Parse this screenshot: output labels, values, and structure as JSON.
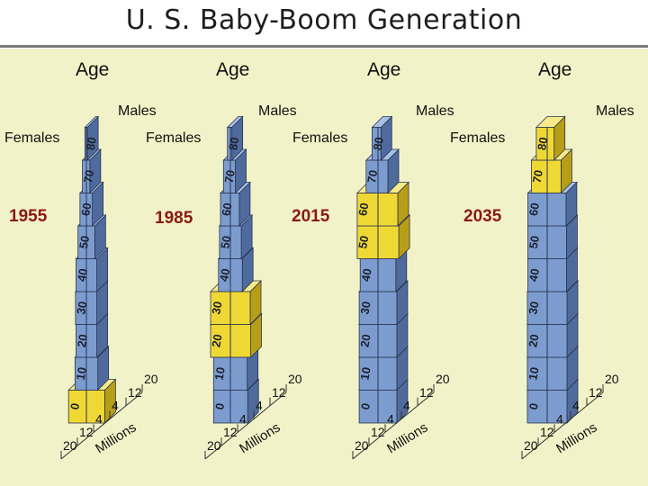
{
  "title": "U. S. Baby-Boom Generation",
  "colors": {
    "background": "#f2f2c8",
    "bar_blue": "#7c9ccf",
    "bar_blue_side": "#4f6b9d",
    "bar_blue_top": "#a9c0e6",
    "baby_boom": "#f0d834",
    "baby_boom_side": "#b89e16",
    "baby_boom_top": "#f8ea88",
    "year_label": "#8b1a12"
  },
  "chart_data": [
    {
      "type": "bar",
      "year": "1955",
      "y_axis_title": "Age",
      "left_label": "Females",
      "right_label": "Males",
      "x_axis_title": "Millions",
      "x_ticks": [
        "20",
        "12",
        "4",
        "4",
        "12",
        "20"
      ],
      "age_labels": [
        "0",
        "10",
        "20",
        "30",
        "40",
        "50",
        "60",
        "70",
        "80"
      ],
      "age_groups": [
        0,
        10,
        20,
        30,
        40,
        50,
        60,
        70,
        80
      ],
      "females": [
        18,
        11.5,
        10.5,
        11,
        10.5,
        8.5,
        6.5,
        4,
        1.5
      ],
      "males": [
        18.5,
        11.5,
        10.5,
        10.5,
        10.5,
        8.5,
        6,
        3.5,
        1
      ],
      "baby_boom_groups": [
        0
      ]
    },
    {
      "type": "bar",
      "year": "1985",
      "y_axis_title": "Age",
      "left_label": "Females",
      "right_label": "Males",
      "x_axis_title": "Millions",
      "x_ticks": [
        "20",
        "12",
        "4",
        "4",
        "12",
        "20"
      ],
      "age_labels": [
        "0",
        "10",
        "20",
        "30",
        "40",
        "50",
        "60",
        "70",
        "80"
      ],
      "age_groups": [
        0,
        10,
        20,
        30,
        40,
        50,
        60,
        70,
        80
      ],
      "females": [
        17,
        17,
        20,
        20,
        12,
        11,
        10,
        7,
        3
      ],
      "males": [
        17.5,
        17,
        20.5,
        20,
        12,
        11,
        9,
        5,
        1.5
      ],
      "baby_boom_groups": [
        20,
        30
      ]
    },
    {
      "type": "bar",
      "year": "2015",
      "y_axis_title": "Age",
      "left_label": "Females",
      "right_label": "Males",
      "x_axis_title": "Millions",
      "x_ticks": [
        "20",
        "12",
        "4",
        "4",
        "12",
        "20"
      ],
      "age_labels": [
        "0",
        "10",
        "20",
        "30",
        "40",
        "50",
        "60",
        "70",
        "80"
      ],
      "age_groups": [
        0,
        10,
        20,
        30,
        40,
        50,
        60,
        70,
        80
      ],
      "females": [
        19,
        19,
        19,
        19,
        18,
        21,
        21,
        12,
        6
      ],
      "males": [
        19,
        19,
        19,
        19,
        18,
        21,
        20,
        10,
        3
      ],
      "baby_boom_groups": [
        50,
        60
      ]
    },
    {
      "type": "bar",
      "year": "2035",
      "y_axis_title": "Age",
      "left_label": "Females",
      "right_label": "Males",
      "x_axis_title": "Millions",
      "x_ticks": [
        "20",
        "12",
        "4",
        "4",
        "12",
        "20"
      ],
      "age_labels": [
        "0",
        "10",
        "20",
        "30",
        "40",
        "50",
        "60",
        "70",
        "80"
      ],
      "age_groups": [
        0,
        10,
        20,
        30,
        40,
        50,
        60,
        70,
        80
      ],
      "females": [
        20,
        20,
        20,
        20,
        19.5,
        19.5,
        19.5,
        16,
        11
      ],
      "males": [
        20,
        20,
        20,
        20,
        19.5,
        19.5,
        19,
        14,
        7
      ],
      "baby_boom_groups": [
        70,
        80
      ]
    }
  ]
}
